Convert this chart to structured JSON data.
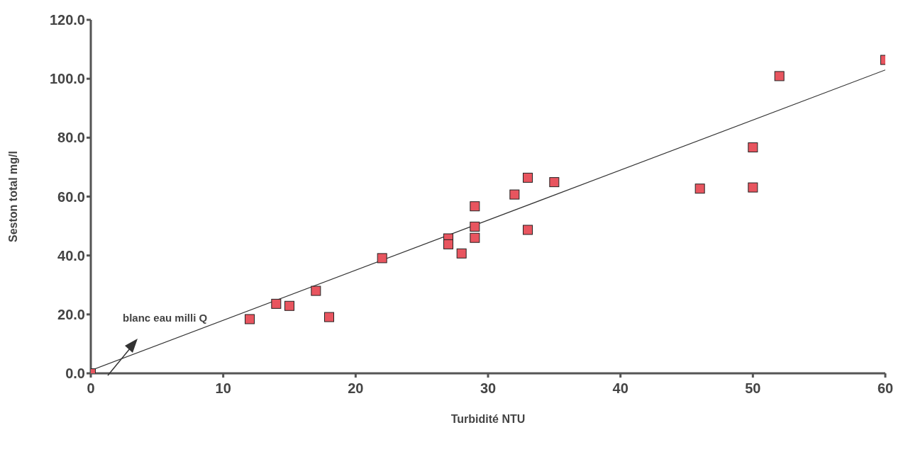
{
  "chart_data": {
    "type": "scatter",
    "xlabel": "Turbidité NTU",
    "ylabel": "Seston total mg/l",
    "xlim": [
      0,
      60
    ],
    "ylim": [
      0,
      120
    ],
    "xticks": [
      0,
      10,
      20,
      30,
      40,
      50,
      60
    ],
    "yticks": [
      {
        "value": 0,
        "label": "0.0"
      },
      {
        "value": 20,
        "label": "20.0"
      },
      {
        "value": 40,
        "label": "40.0"
      },
      {
        "value": 60,
        "label": "60.0"
      },
      {
        "value": 80,
        "label": "80.0"
      },
      {
        "value": 100,
        "label": "100.0"
      },
      {
        "value": 120,
        "label": "120.0"
      }
    ],
    "grid": false,
    "marker": "square",
    "annotations": [
      "blanc eau milli Q"
    ],
    "series": [
      {
        "color": "#e8555f",
        "x": [
          0,
          12,
          14,
          15,
          17,
          18,
          22,
          27,
          27,
          28,
          29,
          29,
          29,
          32,
          33,
          33,
          35,
          46,
          50,
          50,
          52,
          60
        ],
        "values": [
          0,
          18.4,
          23.6,
          22.9,
          28.0,
          19.1,
          39.1,
          45.8,
          43.8,
          40.7,
          56.7,
          49.8,
          46.0,
          60.7,
          66.4,
          48.7,
          64.9,
          62.7,
          76.7,
          63.1,
          100.9,
          106.4
        ]
      },
      {
        "type": "line",
        "color": "#333333",
        "x": [
          0,
          60
        ],
        "values": [
          1,
          103
        ],
        "line_style": "solid",
        "marker": "none"
      }
    ]
  }
}
